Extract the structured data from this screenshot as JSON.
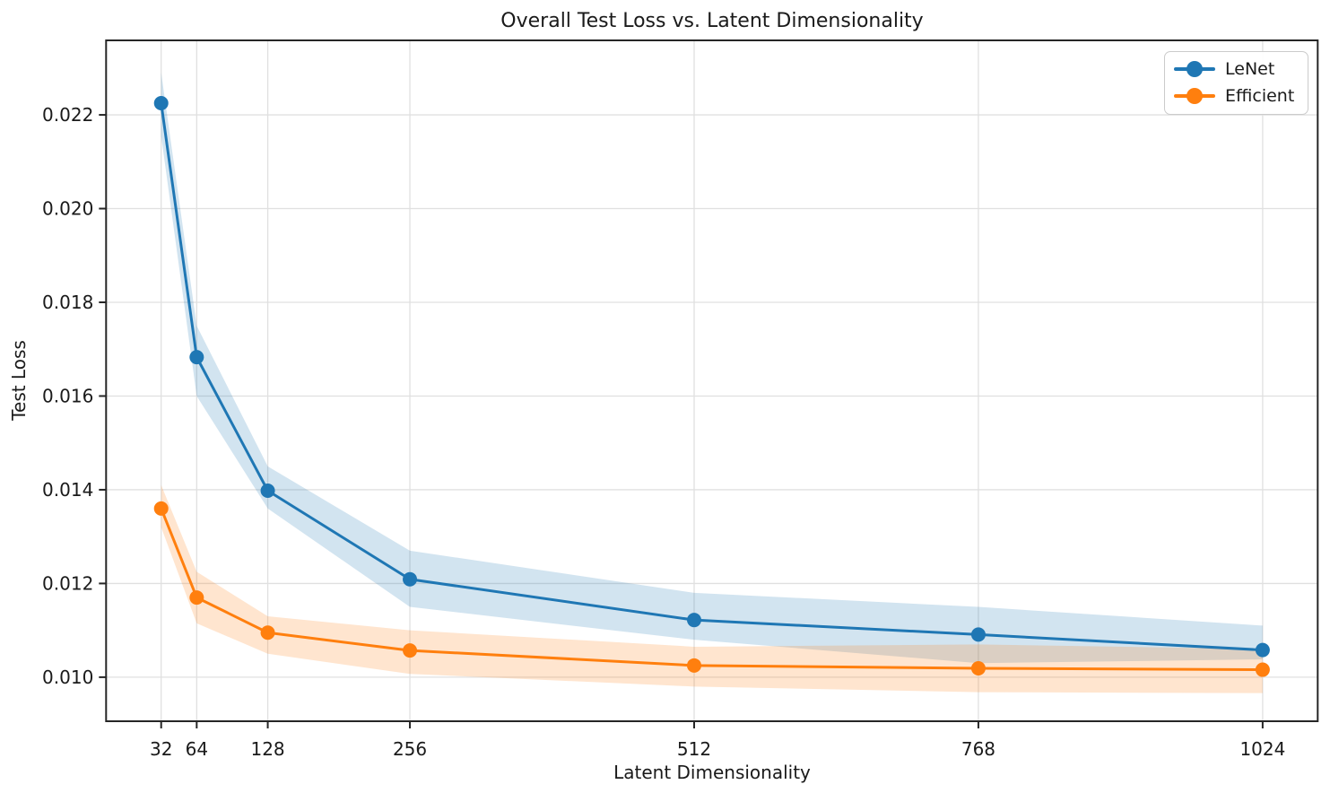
{
  "chart_data": {
    "type": "line",
    "title": "Overall Test Loss vs. Latent Dimensionality",
    "xlabel": "Latent Dimensionality",
    "ylabel": "Test Loss",
    "x": [
      32,
      64,
      128,
      256,
      512,
      768,
      1024
    ],
    "xticks": [
      32,
      64,
      128,
      256,
      512,
      768,
      1024
    ],
    "xtick_labels": [
      "32",
      "64",
      "128",
      "256",
      "512",
      "768",
      "1024"
    ],
    "yticks": [
      0.01,
      0.012,
      0.014,
      0.016,
      0.018,
      0.02,
      0.022
    ],
    "ytick_labels": [
      "0.010",
      "0.012",
      "0.014",
      "0.016",
      "0.018",
      "0.020",
      "0.022"
    ],
    "xlim": [
      -17.6,
      1073.6
    ],
    "ylim": [
      0.00906,
      0.02359
    ],
    "grid": true,
    "legend_position": "upper right",
    "series": [
      {
        "name": "LeNet",
        "color": "#1f77b4",
        "values": [
          0.02225,
          0.01683,
          0.01398,
          0.01209,
          0.01122,
          0.01091,
          0.01058
        ],
        "band_upper": [
          0.0229,
          0.0175,
          0.0145,
          0.0127,
          0.0118,
          0.0115,
          0.0111
        ],
        "band_lower": [
          0.02155,
          0.016,
          0.0136,
          0.0115,
          0.0108,
          0.0103,
          0.01038
        ]
      },
      {
        "name": "Efficient",
        "color": "#ff7f0e",
        "values": [
          0.0136,
          0.0117,
          0.01095,
          0.01057,
          0.01025,
          0.01019,
          0.01016
        ],
        "band_upper": [
          0.0141,
          0.01225,
          0.0113,
          0.011,
          0.01065,
          0.0107,
          0.0106
        ],
        "band_lower": [
          0.0132,
          0.01115,
          0.0105,
          0.01007,
          0.0098,
          0.00968,
          0.00966
        ]
      }
    ]
  },
  "style_colors": {
    "background": "#ffffff",
    "grid": "#e0e0e0",
    "spine": "#262626",
    "text": "#1a1a1a",
    "legend_border": "#cbcbcb",
    "band_opacity": 0.2
  }
}
